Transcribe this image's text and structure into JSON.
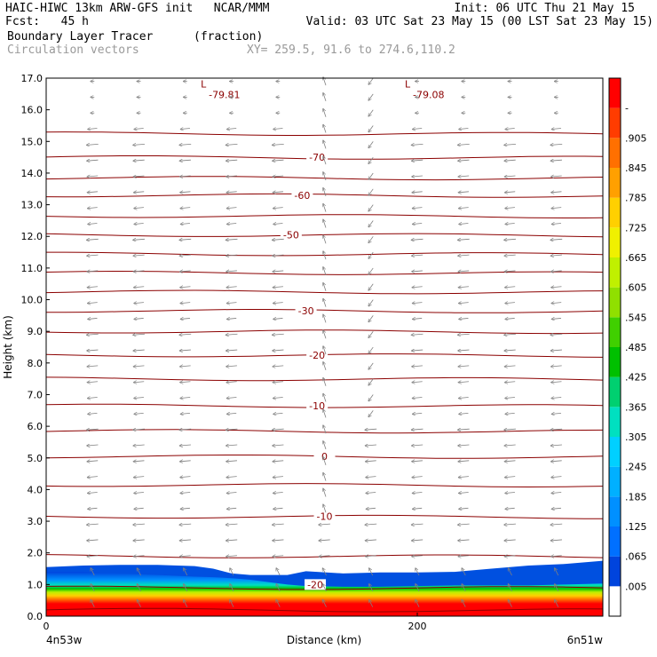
{
  "header": {
    "line1_left": "HAIC-HIWC 13km ARW-GFS init   NCAR/MMM",
    "line1_right": "Init: 06 UTC Thu 21 May 15",
    "line2_left": "Fcst:   45 h",
    "line2_right": "Valid: 03 UTC Sat 23 May 15 (00 LST Sat 23 May 15)",
    "line3_left": "Boundary Layer Tracer",
    "line3_units": "(fraction)",
    "line4_left": "Circulation vectors",
    "line4_xy": "XY= 259.5, 91.6 to 274.6,110.2"
  },
  "chart_data": {
    "type": "heatmap",
    "xlabel": "Distance (km)",
    "ylabel": "Height (km)",
    "xlim": [
      0,
      300
    ],
    "ylim": [
      0,
      17
    ],
    "x_ticks": [
      0,
      200
    ],
    "x_tick_labels": [
      "0",
      "200"
    ],
    "x_end_labels": {
      "left": "4n53w",
      "right": "6n51w"
    },
    "y_ticks": [
      0,
      1,
      2,
      3,
      4,
      5,
      6,
      7,
      8,
      9,
      10,
      11,
      12,
      13,
      14,
      15,
      16,
      17
    ],
    "y_tick_labels": [
      "0.0",
      "1.0",
      "2.0",
      "3.0",
      "4.0",
      "5.0",
      "6.0",
      "7.0",
      "8.0",
      "9.0",
      "10.0",
      "11.0",
      "12.0",
      "13.0",
      "14.0",
      "15.0",
      "16.0",
      "17.0"
    ],
    "colorbar": {
      "labels": [
        ".005",
        ".065",
        ".125",
        ".185",
        ".245",
        ".305",
        ".365",
        ".425",
        ".485",
        ".545",
        ".605",
        ".665",
        ".725",
        ".785",
        ".845",
        ".905",
        "-"
      ],
      "colors": [
        "#ffffff",
        "#0044dd",
        "#0070ff",
        "#0090ff",
        "#00b0ff",
        "#00d0ff",
        "#00e0c0",
        "#00d070",
        "#00c000",
        "#40d000",
        "#90e000",
        "#c0f000",
        "#f0f000",
        "#ffd000",
        "#ffa000",
        "#ff7000",
        "#ff3c00",
        "#ff0000"
      ]
    },
    "tracer_top_km": {
      "x": [
        0,
        20,
        40,
        60,
        80,
        90,
        100,
        110,
        130,
        140,
        160,
        180,
        200,
        220,
        240,
        260,
        280,
        300
      ],
      "blue": [
        1.55,
        1.6,
        1.62,
        1.62,
        1.58,
        1.5,
        1.35,
        1.3,
        1.3,
        1.42,
        1.35,
        1.38,
        1.38,
        1.4,
        1.5,
        1.6,
        1.65,
        1.75
      ],
      "red": [
        0.95,
        0.95,
        0.9,
        0.85,
        0.8,
        0.78,
        0.75,
        0.7,
        0.55,
        0.5,
        0.48,
        0.48,
        0.5,
        0.52,
        0.52,
        0.52,
        0.55,
        0.58
      ]
    },
    "contours": {
      "color": "#8b0000",
      "heights_km": [
        0.2,
        0.9,
        1.9,
        3.15,
        4.15,
        5.05,
        5.85,
        6.65,
        7.5,
        8.25,
        9.0,
        9.65,
        10.25,
        10.85,
        11.45,
        12.05,
        12.65,
        13.3,
        13.85,
        14.5,
        15.25
      ],
      "labels": [
        {
          "text": "-20",
          "x": 145,
          "y": 1.0
        },
        {
          "text": "-10",
          "x": 150,
          "y": 3.15
        },
        {
          "text": "0",
          "x": 150,
          "y": 5.05
        },
        {
          "text": "-10",
          "x": 146,
          "y": 6.65
        },
        {
          "text": "-20",
          "x": 146,
          "y": 8.25
        },
        {
          "text": "-30",
          "x": 140,
          "y": 9.65
        },
        {
          "text": "-50",
          "x": 132,
          "y": 12.05
        },
        {
          "text": "-60",
          "x": 138,
          "y": 13.3
        },
        {
          "text": "-70",
          "x": 146,
          "y": 14.5
        }
      ],
      "lows": [
        {
          "marker": "L",
          "value": "-79.81",
          "x": 90,
          "y": 16.7
        },
        {
          "marker": "L",
          "value": "-79.08",
          "x": 200,
          "y": 16.7
        }
      ]
    },
    "vectors": {
      "color": "#808080",
      "x": [
        25,
        50,
        75,
        100,
        125,
        150,
        175,
        200,
        225,
        250,
        275
      ],
      "y": [
        0.4,
        0.9,
        1.4,
        1.9,
        2.4,
        2.9,
        3.4,
        3.9,
        4.4,
        4.9,
        5.4,
        5.9,
        6.4,
        6.9,
        7.4,
        7.9,
        8.4,
        8.9,
        9.4,
        9.9,
        10.4,
        10.9,
        11.4,
        11.9,
        12.4,
        12.9,
        13.4,
        13.9,
        14.4,
        14.9,
        15.4,
        15.9,
        16.4,
        16.9
      ]
    }
  }
}
